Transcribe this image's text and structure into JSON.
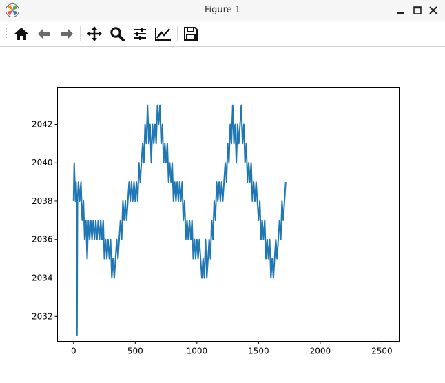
{
  "window": {
    "title": "Figure 1",
    "icons": {
      "app": "matplotlib-app-icon",
      "minimize": "minimize-icon",
      "maximize": "maximize-icon",
      "close": "close-icon"
    }
  },
  "toolbar": {
    "buttons": [
      {
        "name": "home-button",
        "icon": "home-icon"
      },
      {
        "name": "back-button",
        "icon": "arrow-left-icon"
      },
      {
        "name": "forward-button",
        "icon": "arrow-right-icon"
      },
      {
        "name": "pan-button",
        "icon": "move-icon"
      },
      {
        "name": "zoom-button",
        "icon": "zoom-icon"
      },
      {
        "name": "subplots-button",
        "icon": "sliders-icon"
      },
      {
        "name": "customize-button",
        "icon": "line-chart-icon"
      },
      {
        "name": "save-button",
        "icon": "save-icon"
      }
    ]
  },
  "chart_data": {
    "type": "line",
    "title": "",
    "xlabel": "",
    "ylabel": "",
    "xlim": [
      -130,
      2640
    ],
    "ylim": [
      2030.7,
      2043.9
    ],
    "xticks": [
      0,
      500,
      1000,
      1500,
      2000,
      2500
    ],
    "yticks": [
      2032,
      2034,
      2036,
      2038,
      2040,
      2042
    ],
    "grid": false,
    "legend": "none",
    "series_color": "#1f77b4",
    "series": [
      {
        "points": [
          [
            0,
            2038
          ],
          [
            5,
            2040
          ],
          [
            10,
            2039
          ],
          [
            15,
            2038
          ],
          [
            20,
            2039
          ],
          [
            25,
            2038
          ],
          [
            28,
            2031
          ],
          [
            32,
            2038
          ],
          [
            40,
            2039
          ],
          [
            50,
            2038
          ],
          [
            60,
            2039
          ],
          [
            70,
            2037
          ],
          [
            80,
            2038
          ],
          [
            90,
            2036
          ],
          [
            100,
            2037
          ],
          [
            110,
            2035
          ],
          [
            120,
            2037
          ],
          [
            130,
            2036
          ],
          [
            140,
            2037
          ],
          [
            150,
            2036
          ],
          [
            160,
            2037
          ],
          [
            170,
            2036
          ],
          [
            180,
            2037
          ],
          [
            190,
            2036
          ],
          [
            200,
            2037
          ],
          [
            210,
            2036
          ],
          [
            220,
            2037
          ],
          [
            230,
            2036
          ],
          [
            240,
            2037
          ],
          [
            250,
            2035
          ],
          [
            260,
            2036
          ],
          [
            270,
            2035
          ],
          [
            280,
            2036
          ],
          [
            290,
            2035
          ],
          [
            300,
            2036
          ],
          [
            310,
            2034
          ],
          [
            320,
            2035
          ],
          [
            330,
            2034
          ],
          [
            340,
            2035
          ],
          [
            350,
            2036
          ],
          [
            360,
            2035
          ],
          [
            370,
            2036
          ],
          [
            380,
            2037
          ],
          [
            390,
            2036
          ],
          [
            400,
            2038
          ],
          [
            410,
            2037
          ],
          [
            420,
            2038
          ],
          [
            430,
            2037
          ],
          [
            440,
            2038
          ],
          [
            450,
            2039
          ],
          [
            460,
            2038
          ],
          [
            470,
            2039
          ],
          [
            480,
            2038
          ],
          [
            490,
            2039
          ],
          [
            500,
            2038
          ],
          [
            510,
            2039
          ],
          [
            520,
            2038
          ],
          [
            530,
            2040
          ],
          [
            540,
            2039
          ],
          [
            550,
            2040
          ],
          [
            560,
            2041
          ],
          [
            570,
            2040
          ],
          [
            580,
            2042
          ],
          [
            590,
            2041
          ],
          [
            600,
            2043
          ],
          [
            610,
            2041
          ],
          [
            620,
            2042
          ],
          [
            630,
            2040
          ],
          [
            640,
            2042
          ],
          [
            650,
            2041
          ],
          [
            660,
            2042
          ],
          [
            670,
            2041
          ],
          [
            680,
            2043
          ],
          [
            690,
            2042
          ],
          [
            700,
            2043
          ],
          [
            710,
            2041
          ],
          [
            720,
            2042
          ],
          [
            730,
            2040
          ],
          [
            740,
            2041
          ],
          [
            750,
            2040
          ],
          [
            760,
            2041
          ],
          [
            770,
            2039
          ],
          [
            780,
            2040
          ],
          [
            790,
            2039
          ],
          [
            800,
            2040
          ],
          [
            810,
            2038
          ],
          [
            820,
            2039
          ],
          [
            830,
            2038
          ],
          [
            840,
            2039
          ],
          [
            850,
            2038
          ],
          [
            860,
            2039
          ],
          [
            870,
            2038
          ],
          [
            880,
            2039
          ],
          [
            890,
            2037
          ],
          [
            900,
            2038
          ],
          [
            910,
            2036
          ],
          [
            920,
            2037
          ],
          [
            930,
            2036
          ],
          [
            940,
            2037
          ],
          [
            950,
            2036
          ],
          [
            960,
            2037
          ],
          [
            970,
            2035
          ],
          [
            980,
            2036
          ],
          [
            990,
            2035
          ],
          [
            1000,
            2036
          ],
          [
            1010,
            2035
          ],
          [
            1020,
            2036
          ],
          [
            1030,
            2035
          ],
          [
            1040,
            2034
          ],
          [
            1050,
            2035
          ],
          [
            1060,
            2034
          ],
          [
            1070,
            2036
          ],
          [
            1080,
            2034
          ],
          [
            1090,
            2035
          ],
          [
            1100,
            2036
          ],
          [
            1110,
            2035
          ],
          [
            1120,
            2037
          ],
          [
            1130,
            2036
          ],
          [
            1140,
            2038
          ],
          [
            1150,
            2037
          ],
          [
            1160,
            2039
          ],
          [
            1170,
            2038
          ],
          [
            1180,
            2039
          ],
          [
            1190,
            2038
          ],
          [
            1200,
            2039
          ],
          [
            1210,
            2038
          ],
          [
            1220,
            2039
          ],
          [
            1230,
            2040
          ],
          [
            1240,
            2039
          ],
          [
            1250,
            2041
          ],
          [
            1260,
            2040
          ],
          [
            1270,
            2042
          ],
          [
            1280,
            2041
          ],
          [
            1290,
            2043
          ],
          [
            1300,
            2041
          ],
          [
            1310,
            2042
          ],
          [
            1320,
            2040
          ],
          [
            1330,
            2042
          ],
          [
            1340,
            2041
          ],
          [
            1350,
            2042
          ],
          [
            1360,
            2043
          ],
          [
            1370,
            2041
          ],
          [
            1380,
            2042
          ],
          [
            1390,
            2040
          ],
          [
            1400,
            2041
          ],
          [
            1410,
            2039
          ],
          [
            1420,
            2040
          ],
          [
            1430,
            2039
          ],
          [
            1440,
            2040
          ],
          [
            1450,
            2038
          ],
          [
            1460,
            2039
          ],
          [
            1470,
            2038
          ],
          [
            1480,
            2039
          ],
          [
            1490,
            2038
          ],
          [
            1500,
            2037
          ],
          [
            1510,
            2038
          ],
          [
            1520,
            2036
          ],
          [
            1530,
            2037
          ],
          [
            1540,
            2036
          ],
          [
            1550,
            2037
          ],
          [
            1560,
            2035
          ],
          [
            1570,
            2036
          ],
          [
            1580,
            2035
          ],
          [
            1590,
            2036
          ],
          [
            1600,
            2034
          ],
          [
            1610,
            2035
          ],
          [
            1620,
            2034
          ],
          [
            1630,
            2035
          ],
          [
            1640,
            2036
          ],
          [
            1650,
            2035
          ],
          [
            1660,
            2036
          ],
          [
            1670,
            2037
          ],
          [
            1680,
            2036
          ],
          [
            1690,
            2038
          ],
          [
            1700,
            2037
          ],
          [
            1710,
            2038
          ],
          [
            1720,
            2039
          ]
        ]
      }
    ]
  }
}
